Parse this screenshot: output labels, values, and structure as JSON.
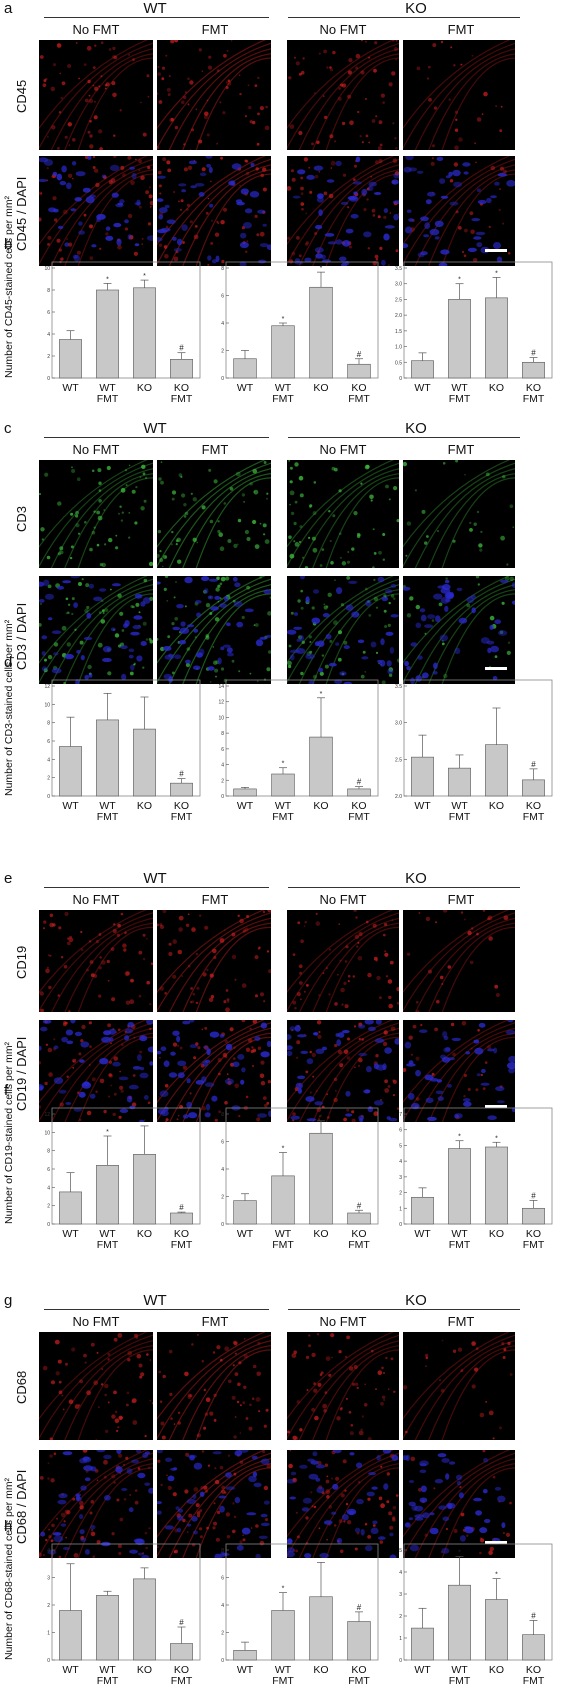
{
  "rows": [
    {
      "letter": "a",
      "marker": "CD45",
      "marker_dapi": "CD45 / DAPI",
      "ylabel": "Number of CD45-stained cells per mm²",
      "group_wt": "WT",
      "group_ko": "KO",
      "no_fmt": "No FMT",
      "fmt": "FMT",
      "stain": "red",
      "stats_letter": "b",
      "micro_top": 24,
      "micro_h1": 110,
      "micro_gap": 6,
      "chart_top": 258
    },
    {
      "letter": "c",
      "marker": "CD3",
      "marker_dapi": "CD3 / DAPI",
      "ylabel": "Number of CD3-stained cells per mm²",
      "group_wt": "WT",
      "group_ko": "KO",
      "no_fmt": "No FMT",
      "fmt": "FMT",
      "stain": "green",
      "stats_letter": "d",
      "micro_top": 444,
      "micro_h1": 108,
      "micro_gap": 8,
      "chart_top": 676
    },
    {
      "letter": "e",
      "marker": "CD19",
      "marker_dapi": "CD19 / DAPI",
      "ylabel": "Number of CD19-stained cells per mm²",
      "group_wt": "WT",
      "group_ko": "KO",
      "no_fmt": "No FMT",
      "fmt": "FMT",
      "stain": "red",
      "stats_letter": "f",
      "micro_top": 894,
      "micro_h1": 102,
      "micro_gap": 8,
      "chart_top": 1104
    },
    {
      "letter": "g",
      "marker": "CD68",
      "marker_dapi": "CD68 / DAPI",
      "ylabel": "Number of CD68-stained cells per mm²",
      "group_wt": "WT",
      "group_ko": "KO",
      "no_fmt": "No FMT",
      "fmt": "FMT",
      "stain": "red",
      "stats_letter": "h",
      "micro_top": 1316,
      "micro_h1": 108,
      "micro_gap": 10,
      "chart_top": 1540
    }
  ],
  "categories": [
    "WT",
    "WT\nFMT",
    "KO",
    "KO\nFMT"
  ],
  "chart_data": [
    {
      "type": "bar",
      "panel": "b",
      "ylim": [
        0,
        10
      ],
      "yticks": [
        "0",
        "2",
        "4",
        "6",
        "8",
        "10"
      ],
      "values": [
        3.5,
        8.0,
        8.2,
        1.7
      ],
      "errors": [
        0.8,
        0.6,
        0.7,
        0.6
      ],
      "marks": [
        "",
        "*",
        "*",
        "#"
      ]
    },
    {
      "type": "bar",
      "panel": "b",
      "ylim": [
        0,
        8
      ],
      "yticks": [
        "0",
        "2",
        "4",
        "6",
        "8"
      ],
      "values": [
        1.4,
        3.8,
        6.6,
        1.0
      ],
      "errors": [
        0.6,
        0.2,
        1.1,
        0.4
      ],
      "marks": [
        "",
        "*",
        "*",
        "#"
      ]
    },
    {
      "type": "bar",
      "panel": "b",
      "ylim": [
        0,
        3.5
      ],
      "yticks": [
        "0",
        "0.5",
        "1.0",
        "1.5",
        "2.0",
        "2.5",
        "3.0",
        "3.5"
      ],
      "values": [
        0.55,
        2.5,
        2.55,
        0.5
      ],
      "errors": [
        0.25,
        0.5,
        0.65,
        0.15
      ],
      "marks": [
        "",
        "*",
        "*",
        "#"
      ]
    },
    {
      "type": "bar",
      "panel": "d",
      "ylim": [
        0,
        12
      ],
      "yticks": [
        "0",
        "2",
        "4",
        "6",
        "8",
        "10",
        "12"
      ],
      "values": [
        5.4,
        8.3,
        7.3,
        1.4
      ],
      "errors": [
        3.2,
        2.9,
        3.5,
        0.5
      ],
      "marks": [
        "",
        "",
        "",
        "#"
      ]
    },
    {
      "type": "bar",
      "panel": "d",
      "ylim": [
        0,
        14
      ],
      "yticks": [
        "0",
        "2",
        "4",
        "6",
        "8",
        "10",
        "12",
        "14"
      ],
      "values": [
        0.9,
        2.8,
        7.5,
        0.9
      ],
      "errors": [
        0.2,
        0.8,
        5.0,
        0.3
      ],
      "marks": [
        "",
        "*",
        "*",
        "#"
      ]
    },
    {
      "type": "bar",
      "panel": "d",
      "ylim": [
        2.0,
        3.5
      ],
      "yticks": [
        "2.0",
        "2.5",
        "3.0",
        "3.5"
      ],
      "values": [
        2.53,
        2.38,
        2.7,
        2.22
      ],
      "errors": [
        0.3,
        0.18,
        0.5,
        0.15
      ],
      "marks": [
        "",
        "",
        "",
        "#"
      ]
    },
    {
      "type": "bar",
      "panel": "f",
      "ylim": [
        0,
        12
      ],
      "yticks": [
        "0",
        "2",
        "4",
        "6",
        "8",
        "10",
        "12"
      ],
      "values": [
        3.5,
        6.4,
        7.6,
        1.2
      ],
      "errors": [
        2.1,
        3.2,
        3.1,
        0.1
      ],
      "marks": [
        "",
        "*",
        "*",
        "#"
      ]
    },
    {
      "type": "bar",
      "panel": "f",
      "ylim": [
        0,
        8
      ],
      "yticks": [
        "0",
        "2",
        "4",
        "6",
        "8"
      ],
      "values": [
        1.7,
        3.5,
        6.6,
        0.8
      ],
      "errors": [
        0.5,
        1.7,
        0.9,
        0.2
      ],
      "marks": [
        "",
        "*",
        "*",
        "#"
      ]
    },
    {
      "type": "bar",
      "panel": "f",
      "ylim": [
        0,
        7
      ],
      "yticks": [
        "0",
        "1",
        "2",
        "3",
        "4",
        "5",
        "6",
        "7"
      ],
      "values": [
        1.7,
        4.8,
        4.9,
        1.0
      ],
      "errors": [
        0.6,
        0.5,
        0.3,
        0.5
      ],
      "marks": [
        "",
        "*",
        "*",
        "#"
      ]
    },
    {
      "type": "bar",
      "panel": "h",
      "ylim": [
        0,
        4
      ],
      "yticks": [
        "0",
        "1",
        "2",
        "3",
        "4"
      ],
      "values": [
        1.8,
        2.35,
        2.95,
        0.6
      ],
      "errors": [
        1.7,
        0.15,
        0.4,
        0.6
      ],
      "marks": [
        "",
        "",
        "",
        "#"
      ]
    },
    {
      "type": "bar",
      "panel": "h",
      "ylim": [
        0,
        8
      ],
      "yticks": [
        "0",
        "2",
        "4",
        "6",
        "8"
      ],
      "values": [
        0.7,
        3.6,
        4.6,
        2.8
      ],
      "errors": [
        0.6,
        1.3,
        2.5,
        0.7
      ],
      "marks": [
        "",
        "*",
        "*",
        "#"
      ]
    },
    {
      "type": "bar",
      "panel": "h",
      "ylim": [
        0,
        5
      ],
      "yticks": [
        "0",
        "1",
        "2",
        "3",
        "4",
        "5"
      ],
      "values": [
        1.45,
        3.4,
        2.75,
        1.15
      ],
      "errors": [
        0.9,
        1.3,
        0.95,
        0.65
      ],
      "marks": [
        "",
        "*",
        "*",
        "#"
      ]
    }
  ],
  "colors": {
    "bar": "#c8c8c8",
    "bar_edge": "#555555",
    "red_stain": "#c81e1e",
    "green_stain": "#3fbf3f",
    "dapi": "#2a2ad0"
  }
}
